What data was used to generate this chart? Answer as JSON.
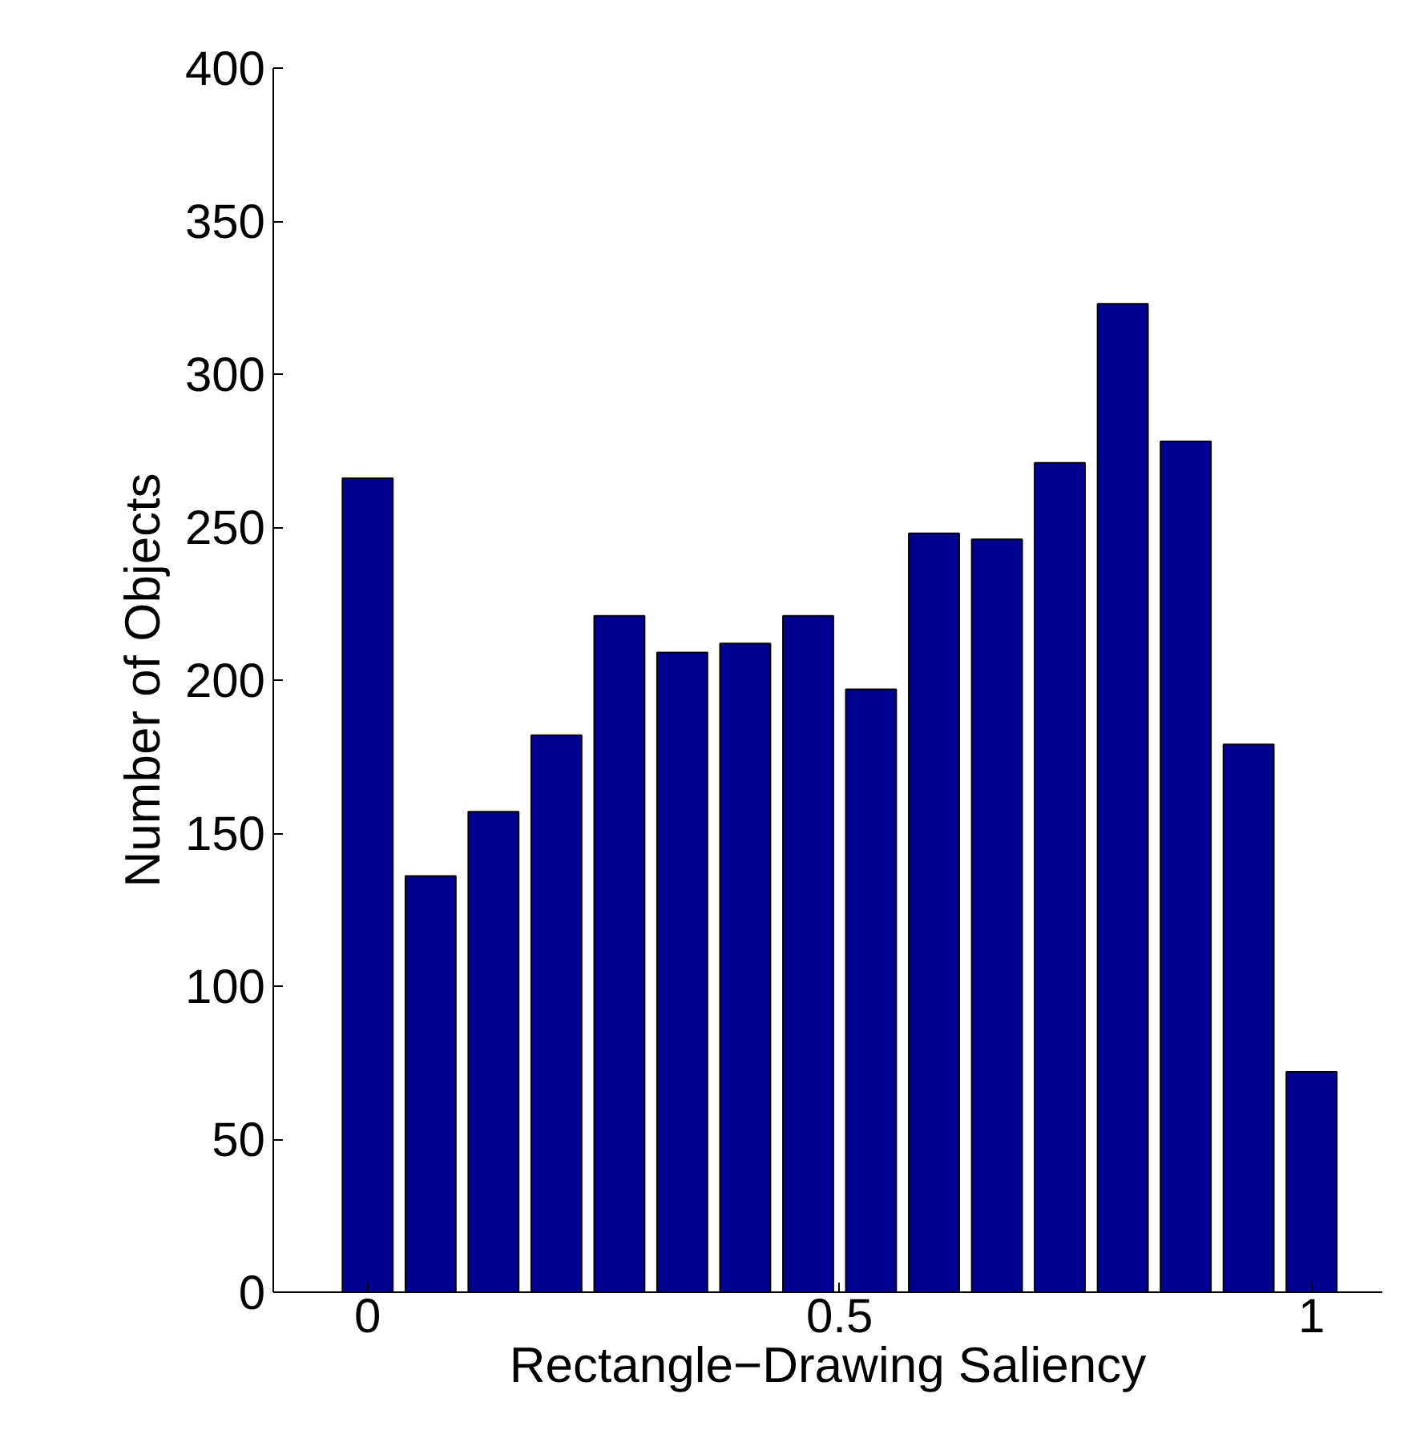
{
  "chart_data": {
    "type": "bar",
    "xlabel": "Rectangle−Drawing Saliency",
    "ylabel": "Number of Objects",
    "x": [
      0,
      0.0667,
      0.1333,
      0.2,
      0.2667,
      0.3333,
      0.4,
      0.4667,
      0.5333,
      0.6,
      0.6667,
      0.7333,
      0.8,
      0.8667,
      0.9333,
      1
    ],
    "values": [
      266,
      136,
      157,
      182,
      221,
      209,
      212,
      221,
      197,
      248,
      246,
      271,
      323,
      278,
      179,
      72
    ],
    "color": "#000090",
    "xlim": [
      -0.1,
      1.075
    ],
    "ylim": [
      0,
      400
    ],
    "xticks": [
      0,
      0.5,
      1
    ],
    "yticks": [
      0,
      50,
      100,
      150,
      200,
      250,
      300,
      350,
      400
    ],
    "grid": false
  }
}
